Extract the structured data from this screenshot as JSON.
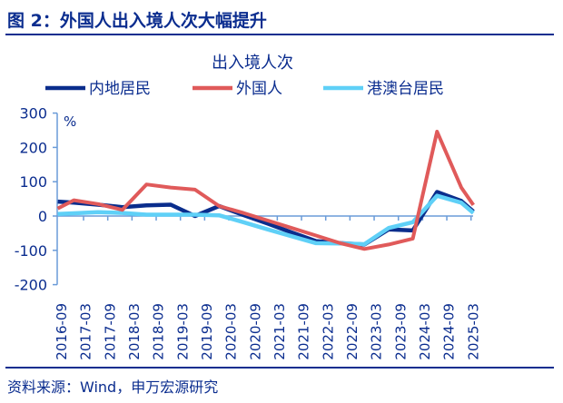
{
  "header": {
    "figure_title": "图 2：外国人出入境人次大幅提升"
  },
  "footer": {
    "source": "资料来源：Wind，申万宏源研究"
  },
  "chart_data": {
    "type": "line",
    "title": "出入境人次",
    "ylabel": "%",
    "ylim": [
      -200,
      300
    ],
    "yticks": [
      300,
      200,
      100,
      0,
      -100,
      -200
    ],
    "xtick_labels": [
      "2016-09",
      "2017-03",
      "2017-09",
      "2018-03",
      "2018-09",
      "2019-03",
      "2019-09",
      "2020-03",
      "2020-09",
      "2021-03",
      "2021-09",
      "2022-03",
      "2022-09",
      "2023-03",
      "2023-09",
      "2024-03",
      "2024-09",
      "2025-03"
    ],
    "x": [
      "2016-08",
      "2016-12",
      "2017-06",
      "2017-12",
      "2018-06",
      "2018-12",
      "2019-06",
      "2019-12",
      "2020-06",
      "2020-12",
      "2021-06",
      "2021-12",
      "2022-06",
      "2022-12",
      "2023-06",
      "2023-12",
      "2024-06",
      "2024-12",
      "2025-03"
    ],
    "legend_position": "top",
    "grid": false,
    "series": [
      {
        "name": "内地居民",
        "color": "#0a2d8c",
        "values": [
          42,
          39,
          33,
          26,
          31,
          33,
          0,
          29,
          3,
          -22,
          -48,
          -73,
          -79,
          -83,
          -39,
          -42,
          70,
          44,
          13
        ]
      },
      {
        "name": "外国人",
        "color": "#e05a5a",
        "values": [
          22,
          46,
          35,
          18,
          92,
          83,
          77,
          29,
          9,
          -13,
          -35,
          -57,
          -79,
          -96,
          -83,
          -66,
          246,
          83,
          32
        ]
      },
      {
        "name": "港澳台居民",
        "color": "#5fd0f7",
        "values": [
          6,
          8,
          11,
          9,
          4,
          4,
          4,
          2,
          -18,
          -39,
          -59,
          -79,
          -80,
          -82,
          -35,
          -18,
          59,
          39,
          9
        ]
      }
    ]
  }
}
